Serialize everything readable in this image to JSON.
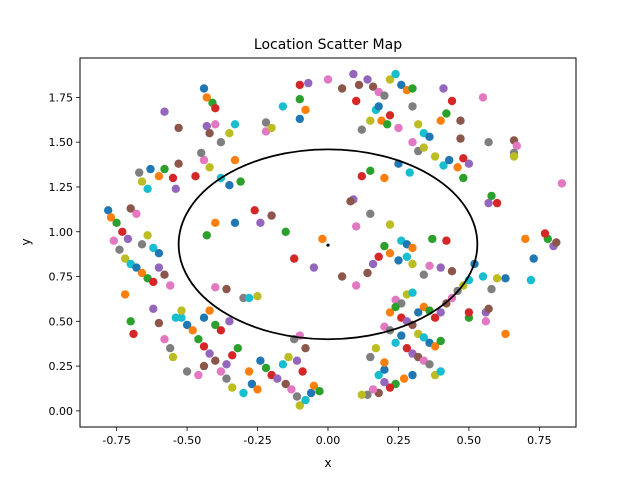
{
  "chart_data": {
    "type": "scatter",
    "title": "Location Scatter Map",
    "xlabel": "x",
    "ylabel": "y",
    "xlim": [
      -0.88,
      0.88
    ],
    "ylim": [
      -0.09,
      1.97
    ],
    "x_ticks": [
      "-0.75",
      "-0.50",
      "-0.25",
      "0.00",
      "0.25",
      "0.50",
      "0.75"
    ],
    "y_ticks": [
      "0.00",
      "0.25",
      "0.50",
      "0.75",
      "1.00",
      "1.25",
      "1.50",
      "1.75"
    ],
    "grid": false,
    "legend": "none",
    "palette": [
      "#1f77b4",
      "#ff7f0e",
      "#2ca02c",
      "#d62728",
      "#9467bd",
      "#8c564b",
      "#e377c2",
      "#7f7f7f",
      "#bcbd22",
      "#17becf"
    ],
    "center": {
      "x": 0.0,
      "y": 0.925
    },
    "ellipse": {
      "cx": 0.0,
      "cy": 0.93,
      "rx": 0.53,
      "ry": 0.53,
      "color": "#000000"
    },
    "points": [
      [
        -0.78,
        1.12
      ],
      [
        -0.77,
        1.08
      ],
      [
        -0.75,
        1.05
      ],
      [
        -0.73,
        1.0
      ],
      [
        -0.71,
        0.96
      ],
      [
        -0.7,
        1.13
      ],
      [
        -0.68,
        1.1
      ],
      [
        -0.67,
        1.33
      ],
      [
        -0.66,
        1.28
      ],
      [
        -0.64,
        1.24
      ],
      [
        -0.63,
        1.35
      ],
      [
        -0.6,
        1.31
      ],
      [
        -0.58,
        1.35
      ],
      [
        -0.55,
        1.3
      ],
      [
        -0.54,
        1.24
      ],
      [
        -0.53,
        1.38
      ],
      [
        -0.76,
        0.95
      ],
      [
        -0.74,
        0.9
      ],
      [
        -0.72,
        0.85
      ],
      [
        -0.7,
        0.82
      ],
      [
        -0.68,
        0.8
      ],
      [
        -0.66,
        0.77
      ],
      [
        -0.64,
        0.74
      ],
      [
        -0.62,
        0.72
      ],
      [
        -0.6,
        0.8
      ],
      [
        -0.58,
        0.76
      ],
      [
        -0.56,
        0.7
      ],
      [
        -0.66,
        0.93
      ],
      [
        -0.64,
        0.98
      ],
      [
        -0.62,
        0.91
      ],
      [
        -0.6,
        0.88
      ],
      [
        -0.72,
        0.65
      ],
      [
        -0.7,
        0.5
      ],
      [
        -0.69,
        0.43
      ],
      [
        -0.62,
        0.57
      ],
      [
        -0.6,
        0.49
      ],
      [
        -0.58,
        0.4
      ],
      [
        -0.56,
        0.35
      ],
      [
        -0.55,
        0.3
      ],
      [
        -0.52,
        0.52
      ],
      [
        -0.5,
        0.48
      ],
      [
        -0.48,
        0.45
      ],
      [
        -0.46,
        0.4
      ],
      [
        -0.44,
        0.36
      ],
      [
        -0.42,
        0.32
      ],
      [
        -0.4,
        0.28
      ],
      [
        -0.38,
        0.22
      ],
      [
        -0.36,
        0.18
      ],
      [
        -0.34,
        0.13
      ],
      [
        -0.3,
        0.1
      ],
      [
        -0.27,
        0.15
      ],
      [
        -0.25,
        0.12
      ],
      [
        -0.22,
        0.24
      ],
      [
        -0.2,
        0.2
      ],
      [
        -0.18,
        0.18
      ],
      [
        -0.15,
        0.15
      ],
      [
        -0.13,
        0.12
      ],
      [
        -0.11,
        0.08
      ],
      [
        -0.1,
        0.03
      ],
      [
        -0.08,
        0.06
      ],
      [
        -0.06,
        0.1
      ],
      [
        -0.05,
        0.14
      ],
      [
        -0.03,
        0.11
      ],
      [
        -0.09,
        0.22
      ],
      [
        -0.11,
        0.28
      ],
      [
        -0.08,
        0.35
      ],
      [
        -0.1,
        0.42
      ],
      [
        -0.12,
        0.4
      ],
      [
        -0.14,
        0.3
      ],
      [
        -0.16,
        0.26
      ],
      [
        -0.24,
        0.28
      ],
      [
        -0.28,
        0.22
      ],
      [
        -0.32,
        0.35
      ],
      [
        -0.34,
        0.31
      ],
      [
        -0.36,
        0.26
      ],
      [
        -0.44,
        0.25
      ],
      [
        -0.46,
        0.2
      ],
      [
        -0.5,
        0.22
      ],
      [
        -0.52,
        0.56
      ],
      [
        -0.54,
        0.52
      ],
      [
        -0.44,
        0.52
      ],
      [
        -0.42,
        0.56
      ],
      [
        -0.4,
        0.48
      ],
      [
        -0.38,
        0.45
      ],
      [
        -0.35,
        0.5
      ],
      [
        -0.36,
        0.68
      ],
      [
        -0.4,
        0.69
      ],
      [
        -0.3,
        0.63
      ],
      [
        -0.25,
        0.64
      ],
      [
        -0.28,
        0.63
      ],
      [
        -0.33,
        1.05
      ],
      [
        -0.4,
        1.05
      ],
      [
        -0.43,
        0.98
      ],
      [
        -0.26,
        1.12
      ],
      [
        -0.24,
        1.05
      ],
      [
        -0.2,
        1.09
      ],
      [
        -0.44,
        1.4
      ],
      [
        -0.45,
        1.44
      ],
      [
        -0.42,
        1.36
      ],
      [
        -0.38,
        1.3
      ],
      [
        -0.35,
        1.26
      ],
      [
        -0.33,
        1.4
      ],
      [
        -0.31,
        1.28
      ],
      [
        -0.47,
        1.31
      ],
      [
        -0.43,
        1.59
      ],
      [
        -0.42,
        1.55
      ],
      [
        -0.4,
        1.6
      ],
      [
        -0.38,
        1.5
      ],
      [
        -0.35,
        1.55
      ],
      [
        -0.33,
        1.6
      ],
      [
        -0.44,
        1.8
      ],
      [
        -0.43,
        1.75
      ],
      [
        -0.41,
        1.72
      ],
      [
        -0.4,
        1.69
      ],
      [
        -0.58,
        1.67
      ],
      [
        -0.53,
        1.58
      ],
      [
        -0.22,
        1.56
      ],
      [
        -0.22,
        1.61
      ],
      [
        -0.2,
        1.58
      ],
      [
        -0.16,
        1.7
      ],
      [
        -0.1,
        1.63
      ],
      [
        -0.08,
        1.68
      ],
      [
        -0.1,
        1.74
      ],
      [
        -0.1,
        1.82
      ],
      [
        -0.07,
        1.83
      ],
      [
        0.05,
        1.8
      ],
      [
        0.0,
        1.85
      ],
      [
        0.12,
        1.57
      ],
      [
        0.15,
        1.62
      ],
      [
        0.17,
        1.68
      ],
      [
        0.18,
        1.7
      ],
      [
        0.19,
        1.62
      ],
      [
        0.21,
        1.6
      ],
      [
        0.22,
        1.65
      ],
      [
        0.14,
        1.85
      ],
      [
        0.16,
        1.81
      ],
      [
        0.18,
        1.78
      ],
      [
        0.2,
        1.76
      ],
      [
        0.22,
        1.85
      ],
      [
        0.24,
        1.88
      ],
      [
        0.26,
        1.82
      ],
      [
        0.28,
        1.79
      ],
      [
        0.3,
        1.8
      ],
      [
        0.1,
        1.73
      ],
      [
        0.09,
        1.88
      ],
      [
        0.11,
        1.82
      ],
      [
        0.25,
        1.58
      ],
      [
        0.3,
        1.7
      ],
      [
        0.32,
        1.6
      ],
      [
        0.34,
        1.55
      ],
      [
        0.36,
        1.53
      ],
      [
        0.4,
        1.62
      ],
      [
        0.42,
        1.66
      ],
      [
        0.44,
        1.73
      ],
      [
        0.41,
        1.8
      ],
      [
        0.47,
        1.62
      ],
      [
        0.55,
        1.75
      ],
      [
        0.57,
        1.5
      ],
      [
        0.38,
        1.42
      ],
      [
        0.41,
        1.37
      ],
      [
        0.43,
        1.4
      ],
      [
        0.46,
        1.36
      ],
      [
        0.48,
        1.3
      ],
      [
        0.48,
        1.41
      ],
      [
        0.5,
        1.38
      ],
      [
        0.47,
        1.52
      ],
      [
        0.3,
        1.5
      ],
      [
        0.32,
        1.45
      ],
      [
        0.34,
        1.47
      ],
      [
        0.29,
        1.33
      ],
      [
        0.25,
        1.38
      ],
      [
        0.2,
        1.3
      ],
      [
        0.15,
        1.34
      ],
      [
        0.12,
        1.31
      ],
      [
        0.09,
        1.18
      ],
      [
        0.08,
        1.17
      ],
      [
        0.1,
        1.03
      ],
      [
        0.15,
        1.1
      ],
      [
        0.22,
        1.04
      ],
      [
        0.26,
        0.95
      ],
      [
        0.28,
        0.93
      ],
      [
        0.3,
        0.91
      ],
      [
        0.37,
        0.96
      ],
      [
        0.42,
        0.95
      ],
      [
        0.4,
        0.8
      ],
      [
        0.44,
        0.78
      ],
      [
        0.36,
        0.81
      ],
      [
        0.34,
        0.76
      ],
      [
        0.3,
        0.82
      ],
      [
        0.28,
        0.86
      ],
      [
        0.25,
        0.84
      ],
      [
        0.22,
        0.88
      ],
      [
        0.2,
        0.92
      ],
      [
        0.18,
        0.86
      ],
      [
        0.16,
        0.82
      ],
      [
        0.14,
        0.77
      ],
      [
        0.24,
        0.62
      ],
      [
        0.26,
        0.6
      ],
      [
        0.28,
        0.65
      ],
      [
        0.3,
        0.66
      ],
      [
        0.32,
        0.55
      ],
      [
        0.34,
        0.58
      ],
      [
        0.36,
        0.56
      ],
      [
        0.38,
        0.52
      ],
      [
        0.4,
        0.55
      ],
      [
        0.42,
        0.6
      ],
      [
        0.44,
        0.63
      ],
      [
        0.46,
        0.67
      ],
      [
        0.48,
        0.7
      ],
      [
        0.5,
        0.73
      ],
      [
        0.52,
        0.82
      ],
      [
        0.22,
        0.55
      ],
      [
        0.24,
        0.58
      ],
      [
        0.26,
        0.52
      ],
      [
        0.28,
        0.5
      ],
      [
        0.3,
        0.48
      ],
      [
        0.2,
        0.47
      ],
      [
        0.22,
        0.45
      ],
      [
        0.32,
        0.43
      ],
      [
        0.34,
        0.41
      ],
      [
        0.36,
        0.38
      ],
      [
        0.38,
        0.36
      ],
      [
        0.4,
        0.39
      ],
      [
        0.28,
        0.35
      ],
      [
        0.3,
        0.32
      ],
      [
        0.32,
        0.3
      ],
      [
        0.34,
        0.28
      ],
      [
        0.36,
        0.26
      ],
      [
        0.38,
        0.2
      ],
      [
        0.4,
        0.22
      ],
      [
        0.3,
        0.2
      ],
      [
        0.27,
        0.18
      ],
      [
        0.24,
        0.15
      ],
      [
        0.22,
        0.13
      ],
      [
        0.2,
        0.16
      ],
      [
        0.18,
        0.1
      ],
      [
        0.16,
        0.12
      ],
      [
        0.14,
        0.09
      ],
      [
        0.12,
        0.09
      ],
      [
        0.18,
        0.2
      ],
      [
        0.2,
        0.23
      ],
      [
        0.2,
        0.27
      ],
      [
        0.5,
        0.52
      ],
      [
        0.5,
        0.55
      ],
      [
        0.56,
        0.55
      ],
      [
        0.57,
        0.57
      ],
      [
        0.56,
        0.5
      ],
      [
        0.58,
        0.68
      ],
      [
        0.6,
        0.74
      ],
      [
        0.55,
        0.75
      ],
      [
        0.63,
        0.74
      ],
      [
        0.63,
        0.43
      ],
      [
        0.58,
        1.2
      ],
      [
        0.6,
        1.16
      ],
      [
        0.57,
        1.16
      ],
      [
        0.66,
        1.51
      ],
      [
        0.67,
        1.48
      ],
      [
        0.66,
        1.44
      ],
      [
        0.66,
        1.42
      ],
      [
        0.72,
        0.73
      ],
      [
        0.73,
        0.85
      ],
      [
        0.7,
        0.96
      ],
      [
        0.78,
        0.96
      ],
      [
        0.77,
        0.99
      ],
      [
        0.8,
        0.92
      ],
      [
        0.81,
        0.94
      ],
      [
        0.83,
        1.27
      ],
      [
        0.15,
        0.3
      ],
      [
        0.17,
        0.35
      ],
      [
        0.24,
        0.38
      ],
      [
        0.26,
        0.42
      ],
      [
        -0.02,
        0.96
      ],
      [
        -0.15,
        1.0
      ],
      [
        -0.12,
        0.85
      ],
      [
        -0.05,
        0.8
      ],
      [
        0.05,
        0.75
      ],
      [
        0.1,
        0.7
      ]
    ]
  }
}
